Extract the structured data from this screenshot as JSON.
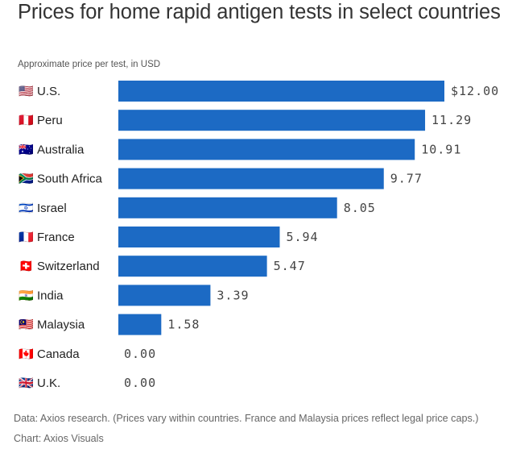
{
  "title": "Prices for home rapid antigen tests in select countries",
  "subtitle": "Approximate price per test, in USD",
  "footer": "Data: Axios research. (Prices vary within countries. France and Malaysia prices reflect legal price caps.) Chart: Axios Visuals",
  "colors": {
    "bar": "#1c6ac4"
  },
  "chart_data": {
    "type": "bar",
    "orientation": "horizontal",
    "title": "Prices for home rapid antigen tests in select countries",
    "subtitle": "Approximate price per test, in USD",
    "categories": [
      "U.S.",
      "Peru",
      "Australia",
      "South Africa",
      "Israel",
      "France",
      "Switzerland",
      "India",
      "Malaysia",
      "Canada",
      "U.K."
    ],
    "flags": [
      "🇺🇸",
      "🇵🇪",
      "🇦🇺",
      "🇿🇦",
      "🇮🇱",
      "🇫🇷",
      "🇨🇭",
      "🇮🇳",
      "🇲🇾",
      "🇨🇦",
      "🇬🇧"
    ],
    "values": [
      12.0,
      11.29,
      10.91,
      9.77,
      8.05,
      5.94,
      5.47,
      3.39,
      1.58,
      0.0,
      0.0
    ],
    "value_labels": [
      "$12.00",
      "11.29",
      "10.91",
      "9.77",
      "8.05",
      "5.94",
      "5.47",
      "3.39",
      "1.58",
      "0.00",
      "0.00"
    ],
    "xlim": [
      0,
      12
    ],
    "grid": false,
    "legend": "none"
  }
}
